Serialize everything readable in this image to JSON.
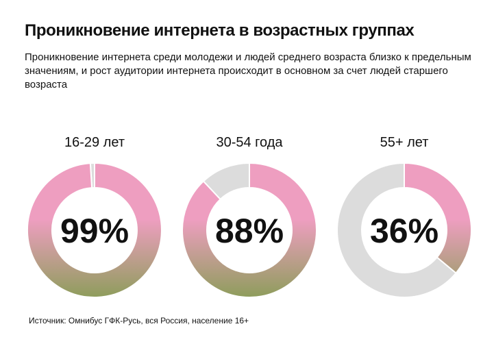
{
  "title": "Проникновение интернета в возрастных группах",
  "subtitle": "Проникновение интернета среди молодежи и людей среднего возраста близко к предельным значениям, и рост аудитории интернета происходит в основном за счет людей старшего возраста",
  "source": "Источник: Омнибус ГФК-Русь, вся Россия, население 16+",
  "colors": {
    "fill_top": "#ee9ec0",
    "fill_bottom": "#8e9d5c",
    "remainder": "#dcdcdc",
    "text": "#111111"
  },
  "chart_data": [
    {
      "type": "pie",
      "subtype": "donut",
      "category": "16-29 лет",
      "value": 99,
      "label": "99%"
    },
    {
      "type": "pie",
      "subtype": "donut",
      "category": "30-54 года",
      "value": 88,
      "label": "88%"
    },
    {
      "type": "pie",
      "subtype": "donut",
      "category": "55+ лет",
      "value": 36,
      "label": "36%"
    }
  ]
}
